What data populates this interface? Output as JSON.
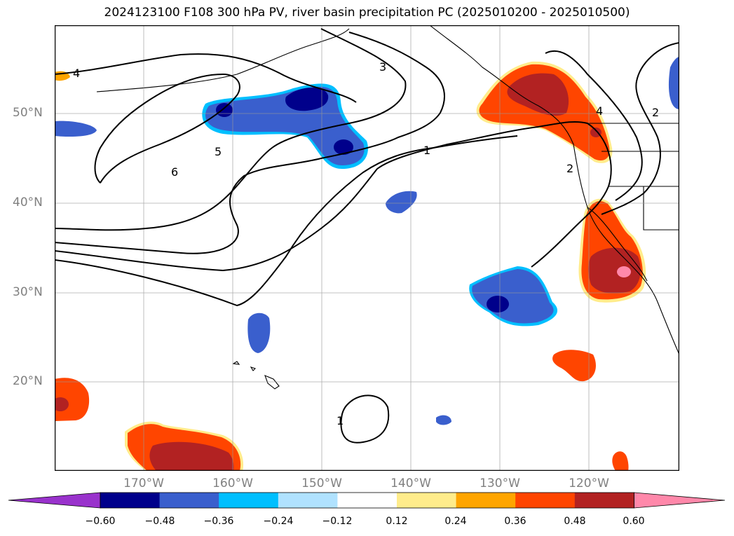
{
  "title": "2024123100 F108 300 hPa PV, river basin precipitation PC (2025010200 - 2025010500)",
  "axes": {
    "lat_labels": [
      "50°N",
      "40°N",
      "30°N",
      "20°N"
    ],
    "lon_labels": [
      "170°W",
      "160°W",
      "150°W",
      "140°W",
      "130°W",
      "120°W"
    ]
  },
  "contour_labels": [
    "4",
    "3",
    "6",
    "5",
    "1",
    "4",
    "2",
    "2",
    "1"
  ],
  "colorbar": {
    "tick_labels": [
      "−0.60",
      "−0.48",
      "−0.36",
      "−0.24",
      "−0.12",
      "0.12",
      "0.24",
      "0.36",
      "0.48",
      "0.60"
    ],
    "colors": [
      "#9932cc",
      "#00008b",
      "#3a5fcd",
      "#00bfff",
      "#b0e2ff",
      "#ffffff",
      "#ffec8b",
      "#ffa500",
      "#ff4500",
      "#b22222",
      "#ff88aa"
    ]
  },
  "fill_colors": {
    "neg_light": "#00bfff",
    "neg_mid": "#3a5fcd",
    "neg_dark": "#00008b",
    "pos_light": "#ffec8b",
    "pos_mid": "#ff4500",
    "pos_dark": "#b22222",
    "pos_max": "#ff88aa"
  }
}
